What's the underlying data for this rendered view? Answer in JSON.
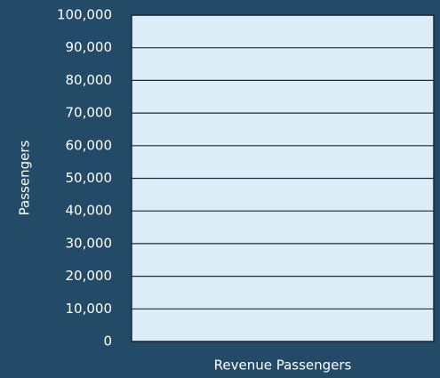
{
  "chart_data": {
    "type": "bar",
    "xlabel": "Revenue Passengers",
    "ylabel": "Passengers",
    "ylim": [
      0,
      100000
    ],
    "yticks": [
      0,
      {
        "value": 10000,
        "label": "10,000"
      },
      {
        "value": 20000,
        "label": "20,000"
      },
      {
        "value": 30000,
        "label": "30,000"
      },
      {
        "value": 40000,
        "label": "40,000"
      },
      {
        "value": 50000,
        "label": "50,000"
      },
      {
        "value": 60000,
        "label": "60,000"
      },
      {
        "value": 70000,
        "label": "70,000"
      },
      {
        "value": 80000,
        "label": "80,000"
      },
      {
        "value": 90000,
        "label": "90,000"
      },
      {
        "value": 100000,
        "label": "100,000"
      }
    ],
    "grid": true
  }
}
